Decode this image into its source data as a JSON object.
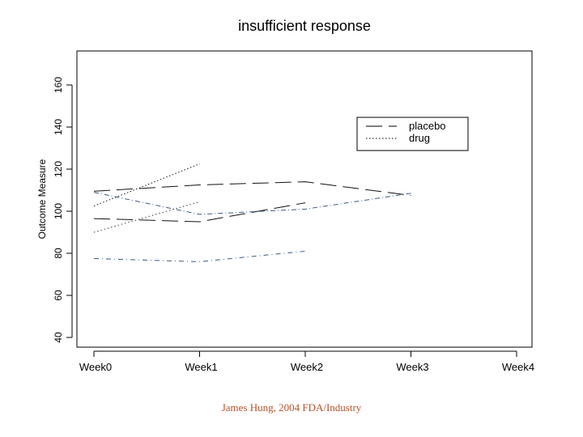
{
  "chart_data": {
    "type": "line",
    "title": "insufficient response",
    "xlabel": "",
    "ylabel": "Outcome Measure",
    "categories": [
      "Week0",
      "Week1",
      "Week2",
      "Week3",
      "Week4"
    ],
    "ylim": [
      35,
      175
    ],
    "yticks": [
      40,
      60,
      80,
      100,
      120,
      140,
      160
    ],
    "grid": false,
    "legend_position": "top-right",
    "legend": [
      {
        "label": "placebo",
        "style": "dashed",
        "color": "#000000"
      },
      {
        "label": "drug",
        "style": "dotted",
        "color": "#000000"
      }
    ],
    "series": [
      {
        "group": "placebo",
        "color": "#111111",
        "dash": "20,8",
        "points": [
          [
            0,
            109.5
          ],
          [
            1,
            112.5
          ],
          [
            2,
            114
          ],
          [
            3,
            107.5
          ]
        ]
      },
      {
        "group": "placebo",
        "color": "#111111",
        "dash": "20,8",
        "points": [
          [
            0,
            96.5
          ],
          [
            1,
            95
          ],
          [
            2,
            104
          ]
        ]
      },
      {
        "group": "drug",
        "color": "#222222",
        "dash": "1.6,2.4",
        "points": [
          [
            0,
            102.5
          ],
          [
            1,
            122.5
          ]
        ]
      },
      {
        "group": "drug",
        "color": "#333333",
        "dash": "1.4,3",
        "points": [
          [
            0,
            90
          ],
          [
            1,
            104.5
          ]
        ]
      },
      {
        "group": "drug",
        "color": "#3a5a8a",
        "dash": "6,3,1,3",
        "points": [
          [
            0,
            109
          ],
          [
            1,
            98.5
          ],
          [
            2,
            101
          ],
          [
            3,
            108.5
          ]
        ]
      },
      {
        "group": "drug",
        "color": "#3a5a8a",
        "dash": "6,4,1,4",
        "points": [
          [
            0,
            77.5
          ],
          [
            1,
            76
          ],
          [
            2,
            81
          ]
        ]
      }
    ]
  },
  "footer": {
    "credit": "James Hung, 2004 FDA/Industry"
  }
}
